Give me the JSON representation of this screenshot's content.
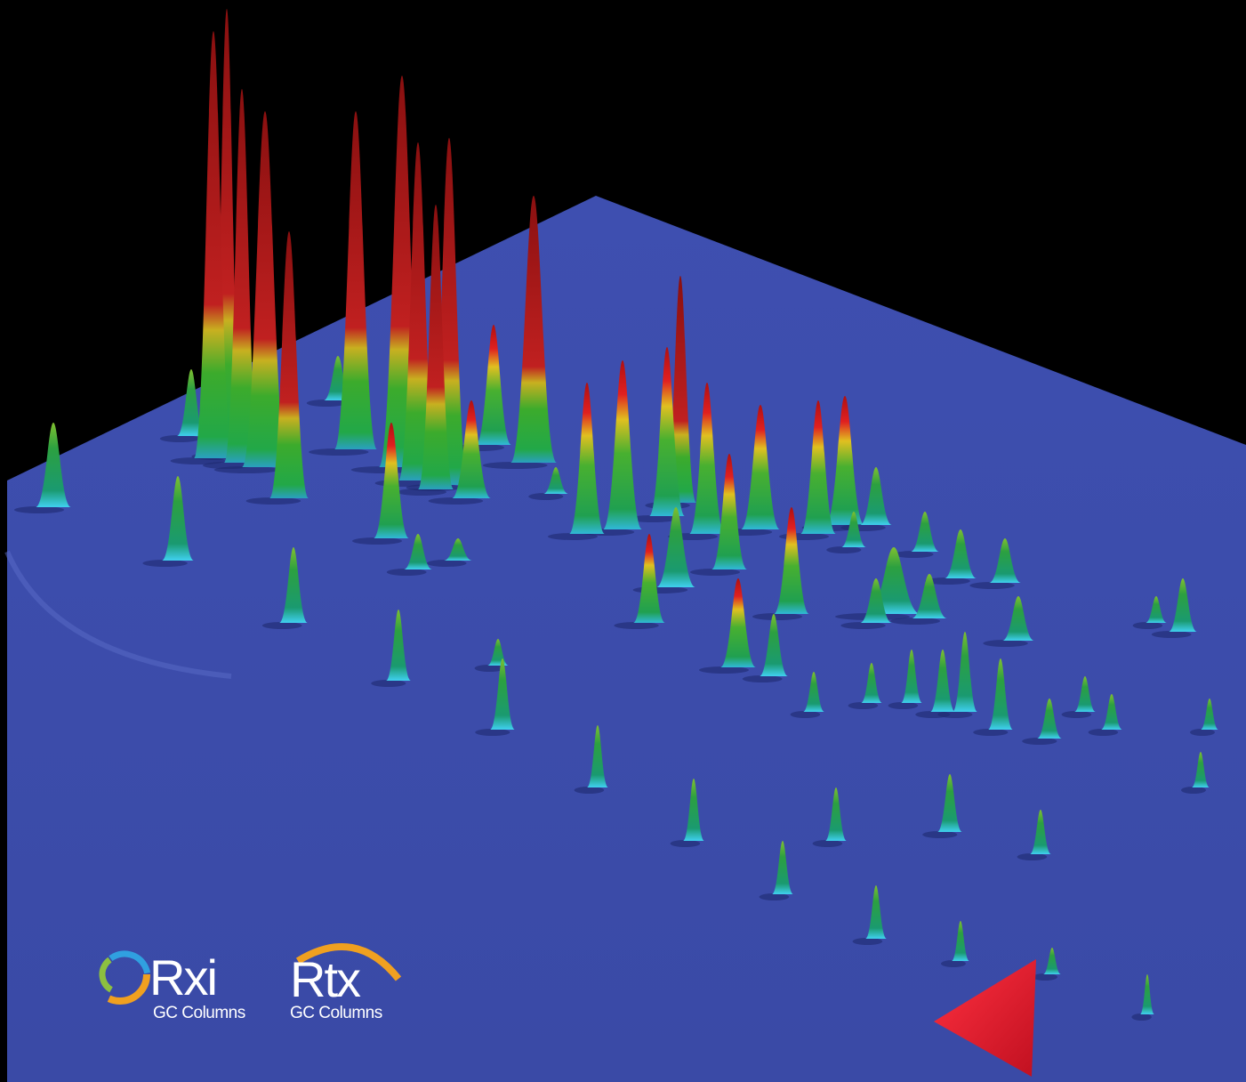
{
  "logos": [
    {
      "name": "Rxi",
      "subtitle": "GC Columns"
    },
    {
      "name": "Rtx",
      "subtitle": "GC Columns"
    }
  ]
}
